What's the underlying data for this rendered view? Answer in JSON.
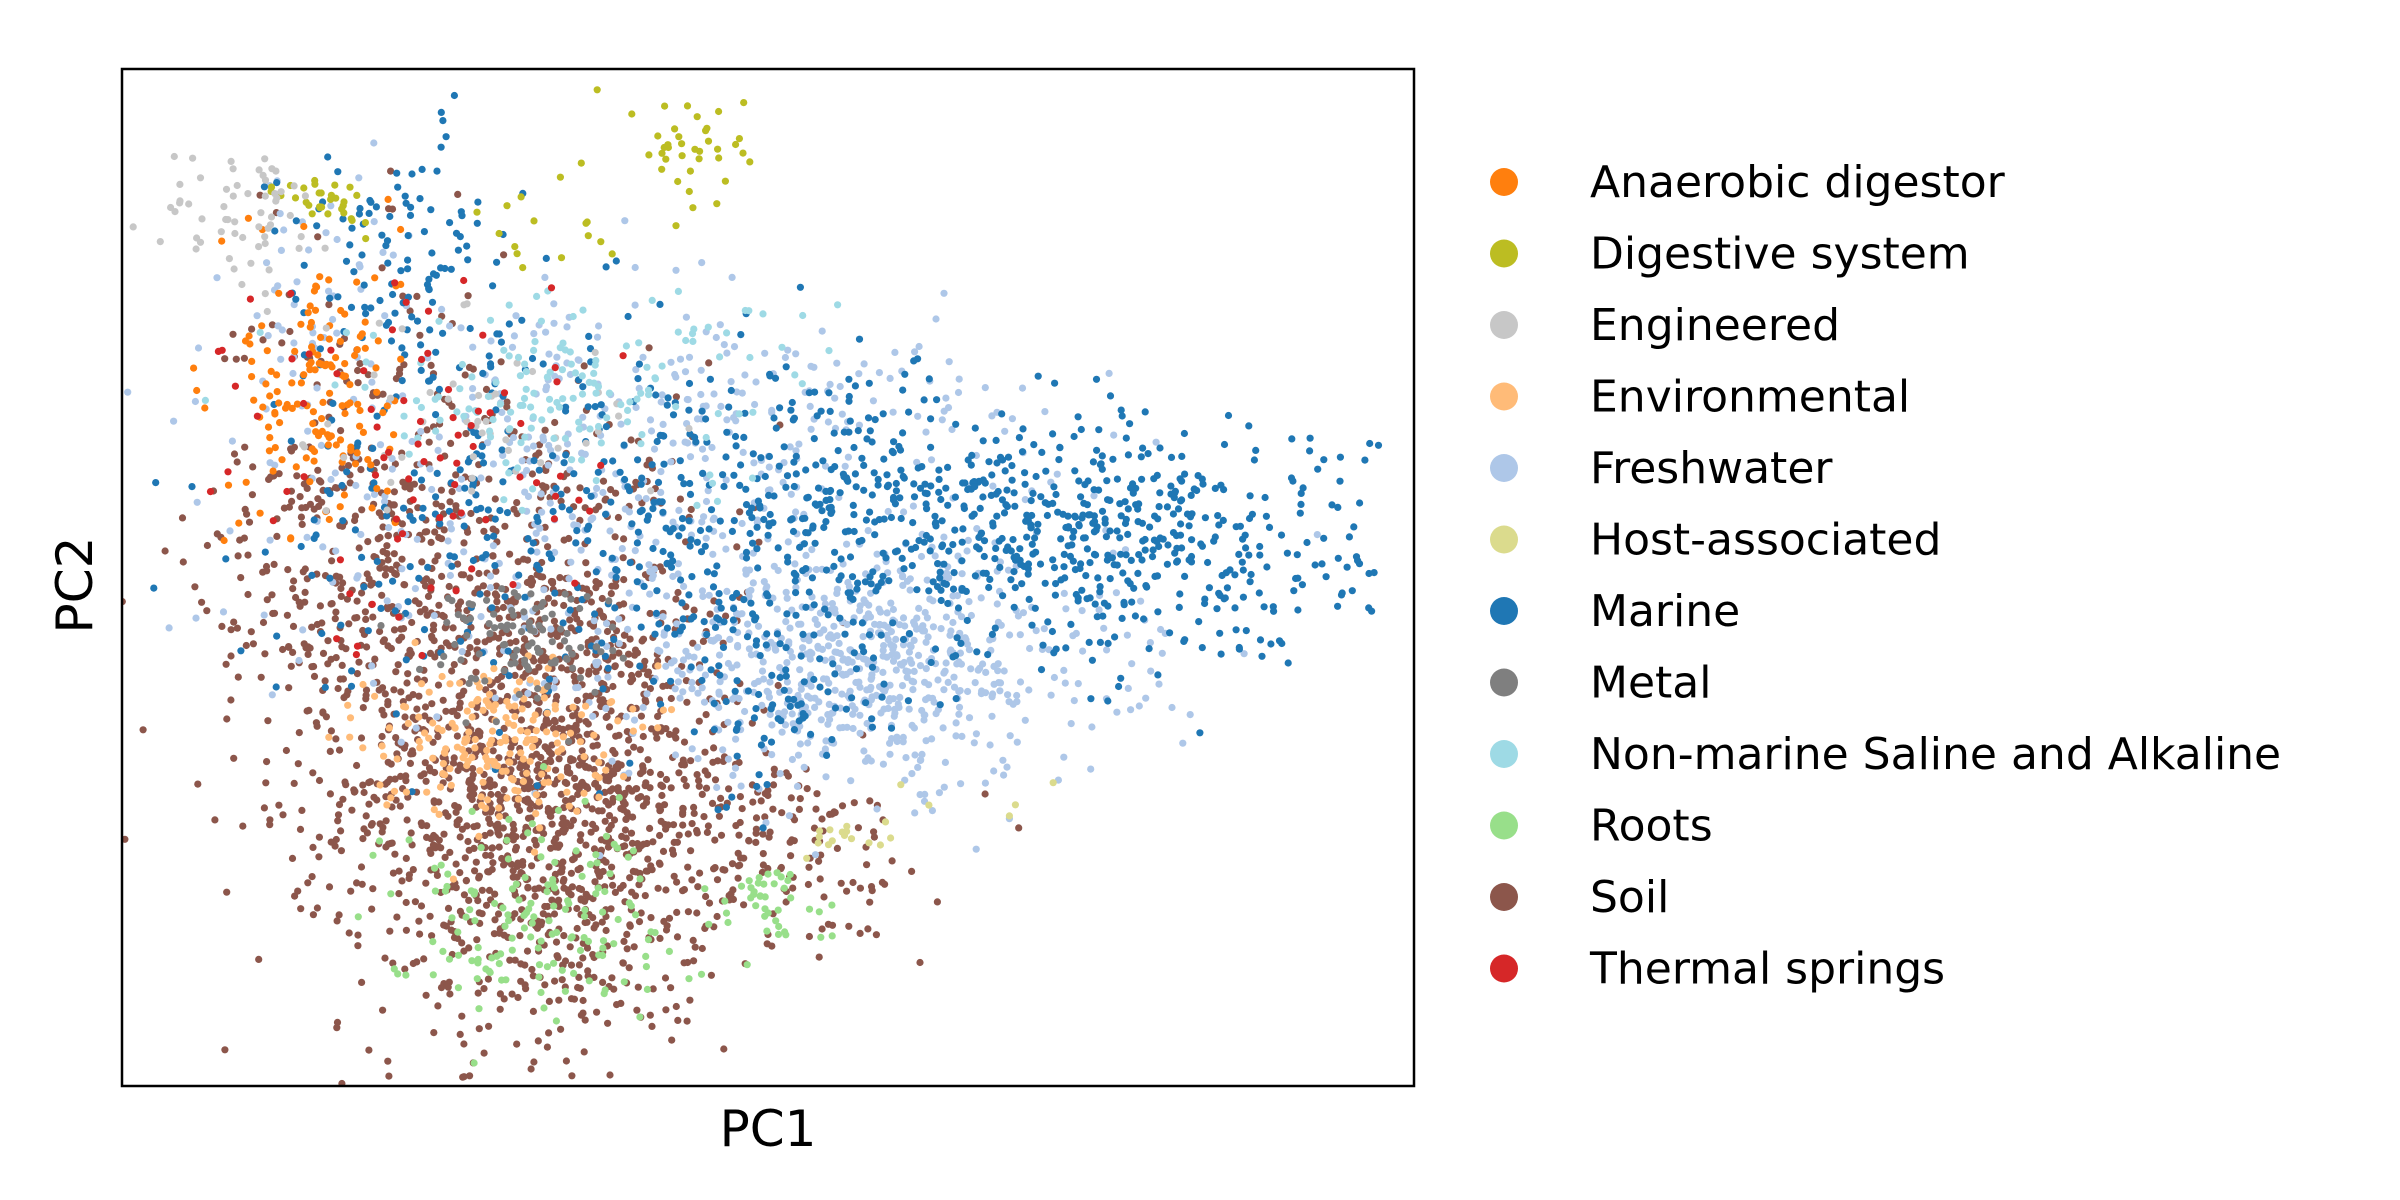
{
  "chart_data": {
    "type": "scatter",
    "title": "",
    "xlabel": "PC1",
    "ylabel": "PC2",
    "xticks": false,
    "yticks": false,
    "grid": false,
    "legend_position": "right",
    "xlim": [
      -1.2,
      1.4
    ],
    "ylim": [
      -1.05,
      1.0
    ],
    "legend": [
      {
        "name": "Anaerobic digestor",
        "color": "#ff7f0e"
      },
      {
        "name": "Digestive system",
        "color": "#bcbd22"
      },
      {
        "name": "Engineered",
        "color": "#c7c7c7"
      },
      {
        "name": "Environmental",
        "color": "#ffbb78"
      },
      {
        "name": "Freshwater",
        "color": "#aec7e8"
      },
      {
        "name": "Host-associated",
        "color": "#dbdb8d"
      },
      {
        "name": "Marine",
        "color": "#1f77b4"
      },
      {
        "name": "Metal",
        "color": "#7f7f7f"
      },
      {
        "name": "Non-marine Saline and Alkaline",
        "color": "#9edae5"
      },
      {
        "name": "Roots",
        "color": "#98df8a"
      },
      {
        "name": "Soil",
        "color": "#8c564b"
      },
      {
        "name": "Thermal springs",
        "color": "#d62728"
      }
    ],
    "series": [
      {
        "name": "Soil",
        "color": "#8c564b",
        "clusters": [
          {
            "cx": -0.35,
            "cy": -0.45,
            "sx": 0.2,
            "sy": 0.25,
            "n": 1400
          },
          {
            "cx": -0.75,
            "cy": 0.0,
            "sx": 0.15,
            "sy": 0.3,
            "n": 350
          },
          {
            "cx": -0.45,
            "cy": 0.05,
            "sx": 0.2,
            "sy": 0.2,
            "n": 250
          },
          {
            "cx": 0.05,
            "cy": -0.6,
            "sx": 0.2,
            "sy": 0.12,
            "n": 120
          },
          {
            "cx": 0.2,
            "cy": -0.55,
            "sx": 0.1,
            "sy": 0.06,
            "n": 40
          }
        ]
      },
      {
        "name": "Freshwater",
        "color": "#aec7e8",
        "clusters": [
          {
            "cx": 0.3,
            "cy": -0.2,
            "sx": 0.25,
            "sy": 0.12,
            "n": 700
          },
          {
            "cx": -0.3,
            "cy": 0.1,
            "sx": 0.3,
            "sy": 0.2,
            "n": 300
          },
          {
            "cx": 0.1,
            "cy": 0.3,
            "sx": 0.3,
            "sy": 0.1,
            "n": 150
          },
          {
            "cx": -0.8,
            "cy": 0.5,
            "sx": 0.1,
            "sy": 0.2,
            "n": 60
          }
        ]
      },
      {
        "name": "Marine",
        "color": "#1f77b4",
        "clusters": [
          {
            "cx": 0.8,
            "cy": 0.05,
            "sx": 0.25,
            "sy": 0.12,
            "n": 500
          },
          {
            "cx": 0.2,
            "cy": 0.1,
            "sx": 0.25,
            "sy": 0.15,
            "n": 400
          },
          {
            "cx": -0.4,
            "cy": 0.1,
            "sx": 0.25,
            "sy": 0.2,
            "n": 250
          },
          {
            "cx": -0.65,
            "cy": 0.6,
            "sx": 0.12,
            "sy": 0.15,
            "n": 120
          },
          {
            "cx": 0.1,
            "cy": -0.25,
            "sx": 0.1,
            "sy": 0.1,
            "n": 80
          }
        ]
      },
      {
        "name": "Anaerobic digestor",
        "color": "#ff7f0e",
        "clusters": [
          {
            "cx": -0.8,
            "cy": 0.35,
            "sx": 0.08,
            "sy": 0.15,
            "n": 150
          }
        ]
      },
      {
        "name": "Digestive system",
        "color": "#bcbd22",
        "clusters": [
          {
            "cx": -0.05,
            "cy": 0.85,
            "sx": 0.06,
            "sy": 0.05,
            "n": 35
          },
          {
            "cx": -0.3,
            "cy": 0.7,
            "sx": 0.15,
            "sy": 0.08,
            "n": 20
          },
          {
            "cx": -0.78,
            "cy": 0.73,
            "sx": 0.05,
            "sy": 0.03,
            "n": 30
          }
        ]
      },
      {
        "name": "Engineered",
        "color": "#c7c7c7",
        "clusters": [
          {
            "cx": -0.95,
            "cy": 0.7,
            "sx": 0.08,
            "sy": 0.08,
            "n": 60
          },
          {
            "cx": -0.5,
            "cy": 0.3,
            "sx": 0.2,
            "sy": 0.1,
            "n": 50
          }
        ]
      },
      {
        "name": "Environmental",
        "color": "#ffbb78",
        "clusters": [
          {
            "cx": -0.45,
            "cy": -0.35,
            "sx": 0.12,
            "sy": 0.08,
            "n": 200
          }
        ]
      },
      {
        "name": "Roots",
        "color": "#98df8a",
        "clusters": [
          {
            "cx": -0.38,
            "cy": -0.7,
            "sx": 0.15,
            "sy": 0.1,
            "n": 150
          },
          {
            "cx": 0.1,
            "cy": -0.68,
            "sx": 0.06,
            "sy": 0.04,
            "n": 40
          }
        ]
      },
      {
        "name": "Host-associated",
        "color": "#dbdb8d",
        "clusters": [
          {
            "cx": 0.25,
            "cy": -0.55,
            "sx": 0.06,
            "sy": 0.03,
            "n": 15
          },
          {
            "cx": 0.5,
            "cy": -0.5,
            "sx": 0.1,
            "sy": 0.05,
            "n": 6
          }
        ]
      },
      {
        "name": "Metal",
        "color": "#7f7f7f",
        "clusters": [
          {
            "cx": -0.4,
            "cy": -0.15,
            "sx": 0.1,
            "sy": 0.06,
            "n": 100
          }
        ]
      },
      {
        "name": "Non-marine Saline and Alkaline",
        "color": "#9edae5",
        "clusters": [
          {
            "cx": -0.3,
            "cy": 0.35,
            "sx": 0.25,
            "sy": 0.1,
            "n": 150
          }
        ]
      },
      {
        "name": "Thermal springs",
        "color": "#d62728",
        "clusters": [
          {
            "cx": -0.6,
            "cy": 0.2,
            "sx": 0.2,
            "sy": 0.2,
            "n": 80
          }
        ]
      }
    ]
  }
}
